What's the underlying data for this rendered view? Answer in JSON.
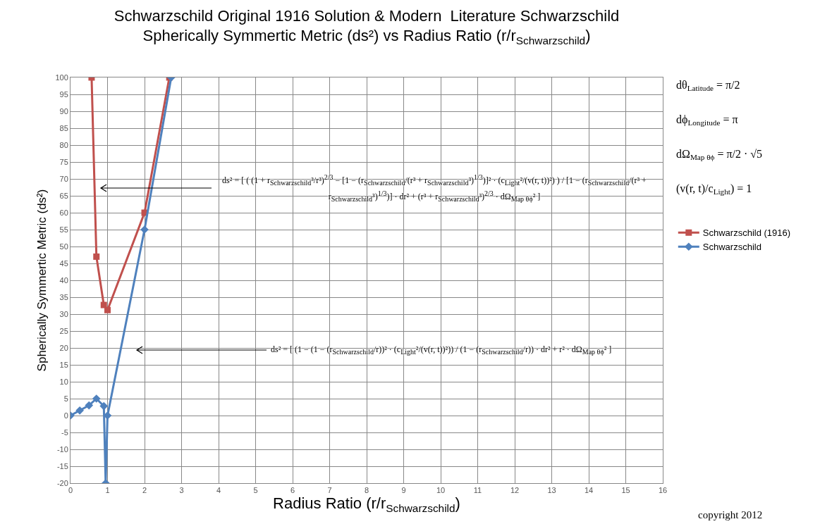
{
  "chart_data": {
    "type": "line",
    "title": "Schwarzschild Original 1916 Solution & Modern  Literature Schwarzschild\nSpherically Symmertic Metric (ds²) vs Radius Ratio (r/r$_{Schwarzschild}$)",
    "xlabel": "Radius Ratio (r/r$_{Schwarzschild}$)",
    "ylabel": "Spherically Symmertic Metric (ds²)",
    "series": [
      {
        "name": "Schwarzschild (1916)",
        "color": "#c0504d",
        "marker": "square",
        "x": [
          0.57,
          0.7,
          0.9,
          1.0,
          2.0,
          2.67
        ],
        "values": [
          100,
          47,
          32.7,
          31.2,
          60,
          100
        ]
      },
      {
        "name": "Schwarzschild",
        "color": "#4f81bd",
        "marker": "diamond",
        "x": [
          0,
          0.25,
          0.5,
          0.7,
          0.9,
          0.95,
          1.0,
          2.0,
          2.72
        ],
        "values": [
          0,
          1.5,
          3,
          5,
          2.8,
          -20,
          0,
          55,
          100
        ]
      }
    ],
    "xlim": [
      0,
      16
    ],
    "xticks": [
      0,
      1,
      2,
      3,
      4,
      5,
      6,
      7,
      8,
      9,
      10,
      11,
      12,
      13,
      14,
      15,
      16
    ],
    "ylim": [
      -20,
      100
    ],
    "yticks": [
      -20,
      -15,
      -10,
      -5,
      0,
      5,
      10,
      15,
      20,
      25,
      30,
      35,
      40,
      45,
      50,
      55,
      60,
      65,
      70,
      75,
      80,
      85,
      90,
      95,
      100
    ],
    "grid": true,
    "legend": "right",
    "line_style": "solid",
    "annotations": [
      "ds² = [ ( (1 + r$_{Schwarzschild}$³/r³)$^{2/3}$ − [1 − (r$_{Schwarzschild}$/(r³ + r$_{Schwarzschild}$³)$^{1/3}$)]² · (c$_{Light}$²/(v(r, t))²) ) / [1 − (r$_{Schwarzschild}$/(r³ + r$_{Schwarzschild}$³)$^{1/3}$)] · dr² + (r³ + r$_{Schwarzschild}$³)$^{2/3}$ · dΩ$_{Map θϕ}$² ]",
      "ds² = [ (1 − (1 − (r$_{Schwarzschild}$/r))² · (c$_{Light}$²/(v(r, t))²)) / (1 − (r$_{Schwarzschild}$/r)) · dr² + r² · dΩ$_{Map θϕ}$² ]",
      "dθ$_{Latitude}$ = π/2",
      "dϕ$_{Longitude}$ = π",
      "dΩ$_{Map θϕ}$ = π/2 · √5",
      "(v(r, t)/c$_{Light}$) = 1",
      "copyright 2012"
    ]
  }
}
